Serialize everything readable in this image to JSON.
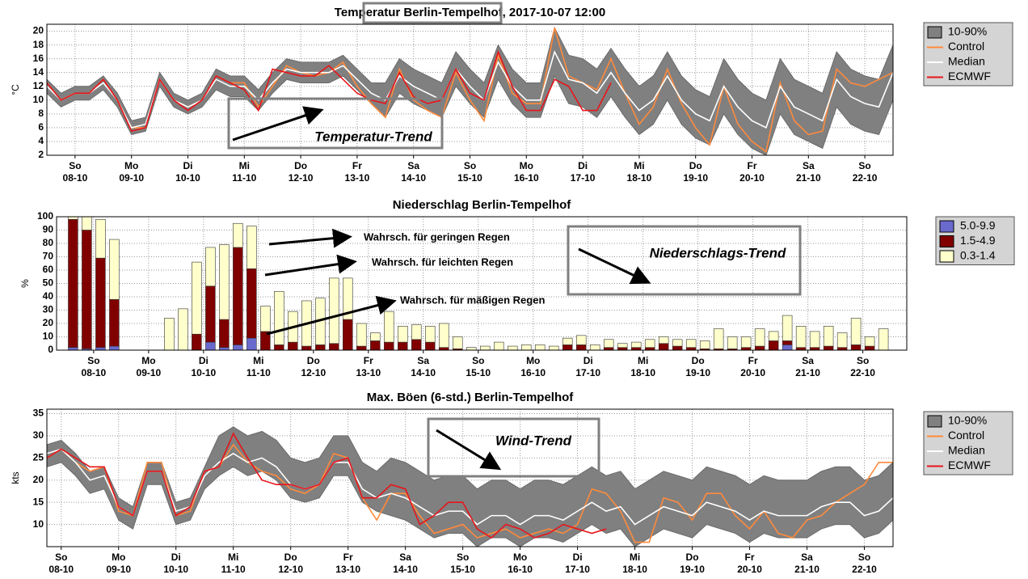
{
  "chart_data": [
    {
      "type": "line",
      "title": "Temperatur Berlin-Tempelhof, 2017-10-07 12:00",
      "ylabel": "°C",
      "ylim": [
        2,
        21
      ],
      "yticks": [
        2,
        4,
        6,
        8,
        10,
        12,
        14,
        16,
        18,
        20
      ],
      "xlim": [
        0,
        60
      ],
      "grid": true,
      "xticks": [
        {
          "value": 2,
          "day": "So",
          "date": "08-10"
        },
        {
          "value": 6,
          "day": "Mo",
          "date": "09-10"
        },
        {
          "value": 10,
          "day": "Di",
          "date": "10-10"
        },
        {
          "value": 14,
          "day": "Mi",
          "date": "11-10"
        },
        {
          "value": 18,
          "day": "Do",
          "date": "12-10"
        },
        {
          "value": 22,
          "day": "Fr",
          "date": "13-10"
        },
        {
          "value": 26,
          "day": "Sa",
          "date": "14-10"
        },
        {
          "value": 30,
          "day": "So",
          "date": "15-10"
        },
        {
          "value": 34,
          "day": "Mo",
          "date": "16-10"
        },
        {
          "value": 38,
          "day": "Di",
          "date": "17-10"
        },
        {
          "value": 42,
          "day": "Mi",
          "date": "18-10"
        },
        {
          "value": 46,
          "day": "Do",
          "date": "19-10"
        },
        {
          "value": 50,
          "day": "Fr",
          "date": "20-10"
        },
        {
          "value": 54,
          "day": "Sa",
          "date": "21-10"
        },
        {
          "value": 58,
          "day": "So",
          "date": "22-10"
        }
      ],
      "band": {
        "name": "10-90%",
        "color": "#808080",
        "low": [
          11,
          9,
          10,
          10,
          11.5,
          9,
          5,
          5.5,
          12,
          9,
          8,
          9,
          11.5,
          10.5,
          10.5,
          8.5,
          11,
          13,
          12.5,
          12.5,
          12.5,
          13.5,
          11.5,
          9.5,
          7.5,
          11,
          9.5,
          8.5,
          7.5,
          12,
          9.5,
          7.5,
          13,
          9.5,
          7.5,
          7.5,
          13.5,
          9.5,
          9,
          7.5,
          10.5,
          7.5,
          5,
          6.5,
          10,
          6.5,
          4.5,
          3.5,
          8,
          5,
          3,
          2,
          8,
          5,
          4,
          3,
          9,
          6.5,
          5.5,
          5,
          10
        ],
        "high": [
          13,
          11,
          12,
          12,
          13.5,
          11,
          7,
          7.5,
          14,
          11,
          10,
          11,
          14.5,
          13.5,
          13.5,
          11.5,
          14,
          16,
          15.5,
          15.5,
          15.5,
          16.5,
          14.5,
          12.5,
          12.5,
          16,
          14.5,
          13.5,
          12.5,
          17,
          14.5,
          12.5,
          18,
          14.5,
          12.5,
          12.5,
          20.5,
          16.5,
          16,
          14.5,
          17.5,
          14.5,
          12,
          13.5,
          17,
          13.5,
          11.5,
          10.5,
          16,
          13,
          11,
          10,
          16,
          13,
          12,
          11,
          17,
          14.5,
          13.5,
          13,
          18
        ]
      },
      "series": [
        {
          "name": "Control",
          "color": "#ff8a3c",
          "values": [
            12.5,
            10,
            11,
            11,
            13,
            10,
            6,
            6,
            13,
            10,
            9,
            10,
            13.5,
            12.5,
            12.5,
            9,
            12,
            15,
            14,
            13.5,
            14,
            15.5,
            12,
            9.5,
            7.5,
            14.5,
            10,
            8.5,
            7.5,
            14,
            10,
            7,
            16.5,
            11,
            9.5,
            9.5,
            20.5,
            13.5,
            12.5,
            11.5,
            16,
            11,
            6.5,
            9,
            14.5,
            9.5,
            6,
            3.5,
            12,
            6.5,
            4,
            2.5,
            12.5,
            7,
            5,
            5.5,
            14.5,
            12.5,
            12,
            13,
            14
          ]
        },
        {
          "name": "Median",
          "color": "#ffffff",
          "values": [
            12,
            10,
            11,
            11,
            12.5,
            10,
            6,
            6.5,
            13,
            10,
            9,
            10,
            13,
            12,
            12,
            10,
            12.5,
            14.5,
            14,
            14,
            14,
            15,
            13,
            11,
            10,
            13.5,
            12,
            11,
            10,
            14.5,
            12,
            10,
            15.5,
            12,
            10,
            10,
            17,
            13,
            12.5,
            11,
            14,
            11,
            8.5,
            10,
            13.5,
            10,
            8,
            7,
            12,
            9,
            7,
            6,
            12,
            9,
            8,
            7,
            13,
            10.5,
            9.5,
            9,
            14
          ]
        },
        {
          "name": "ECMWF",
          "color": "#e8141a",
          "values": [
            12.5,
            10,
            11,
            11,
            13,
            10,
            5.5,
            6,
            13,
            10,
            8.5,
            10,
            13.5,
            12.5,
            11.5,
            8.5,
            14.5,
            14,
            13.5,
            13.5,
            15,
            13,
            11,
            10,
            9.5,
            14,
            10.5,
            9.5,
            10,
            14.5,
            11,
            10,
            17,
            12,
            8.5,
            8.5,
            13,
            12,
            8.5,
            8.5,
            12.5,
            null,
            null,
            null,
            null,
            null,
            null,
            null,
            null,
            null,
            null,
            null,
            null,
            null,
            null,
            null,
            null,
            null,
            null,
            null,
            null
          ]
        }
      ],
      "annotations": [
        "Temperatur-Trend"
      ]
    },
    {
      "type": "bar",
      "title": "Niederschlag Berlin-Tempelhof",
      "ylabel": "%",
      "ylim": [
        0,
        100
      ],
      "yticks": [
        0,
        10,
        20,
        30,
        40,
        50,
        60,
        70,
        80,
        90,
        100
      ],
      "xlim": [
        -1.2,
        60.7
      ],
      "grid": true,
      "xticks": [
        {
          "value": 1.5,
          "day": "So",
          "date": "08-10"
        },
        {
          "value": 5.5,
          "day": "Mo",
          "date": "09-10"
        },
        {
          "value": 9.5,
          "day": "Di",
          "date": "10-10"
        },
        {
          "value": 13.5,
          "day": "Mi",
          "date": "11-10"
        },
        {
          "value": 17.5,
          "day": "Do",
          "date": "12-10"
        },
        {
          "value": 21.5,
          "day": "Fr",
          "date": "13-10"
        },
        {
          "value": 25.5,
          "day": "Sa",
          "date": "14-10"
        },
        {
          "value": 29.5,
          "day": "So",
          "date": "15-10"
        },
        {
          "value": 33.5,
          "day": "Mo",
          "date": "16-10"
        },
        {
          "value": 37.5,
          "day": "Di",
          "date": "17-10"
        },
        {
          "value": 41.5,
          "day": "Mi",
          "date": "18-10"
        },
        {
          "value": 45.5,
          "day": "Do",
          "date": "19-10"
        },
        {
          "value": 49.5,
          "day": "Fr",
          "date": "20-10"
        },
        {
          "value": 53.5,
          "day": "Sa",
          "date": "21-10"
        },
        {
          "value": 57.5,
          "day": "So",
          "date": "22-10"
        }
      ],
      "series": [
        {
          "name": "5.0-9.9",
          "color": "#6a6acd",
          "values": [
            2,
            1,
            2,
            3,
            0,
            0,
            0,
            0,
            0,
            0,
            6,
            2,
            4,
            9,
            0,
            0,
            0,
            0,
            0,
            0,
            0,
            0,
            0,
            0,
            0,
            0,
            0,
            0,
            0,
            0,
            0,
            0,
            0,
            0,
            0,
            0,
            0,
            0,
            0,
            0,
            0,
            0,
            0,
            0,
            0,
            0,
            0,
            0,
            0,
            0,
            0,
            0,
            4,
            0,
            0,
            0,
            0,
            0,
            0,
            0
          ]
        },
        {
          "name": "1.5-4.9",
          "color": "#800000",
          "values": [
            96,
            89,
            67,
            35,
            0,
            0,
            0,
            0,
            0,
            12,
            42,
            21,
            73,
            52,
            14,
            4,
            6,
            3,
            4,
            5,
            23,
            3,
            7,
            6,
            6,
            8,
            6,
            2,
            1,
            0,
            0,
            0,
            0,
            0,
            0,
            0,
            4,
            4,
            0,
            2,
            2,
            2,
            2,
            5,
            3,
            2,
            1,
            1,
            1,
            2,
            3,
            7,
            3,
            2,
            2,
            3,
            2,
            4,
            3,
            0
          ]
        },
        {
          "name": "0.3-1.4",
          "color": "#ffffcc",
          "values": [
            2,
            10,
            29,
            45,
            0,
            0,
            0,
            24,
            31,
            54,
            29,
            56,
            18,
            32,
            19,
            40,
            23,
            34,
            35,
            49,
            31,
            17,
            6,
            23,
            12,
            11,
            12,
            18,
            9,
            2,
            3,
            6,
            3,
            4,
            4,
            3,
            5,
            7,
            4,
            6,
            3,
            4,
            6,
            5,
            5,
            6,
            6,
            15,
            9,
            8,
            13,
            7,
            19,
            16,
            12,
            15,
            11,
            20,
            7,
            16
          ]
        }
      ],
      "annotations": [
        "Niederschlags-Trend",
        "Wahrsch. für geringen Regen",
        "Wahrsch. für leichten Regen",
        "Wahrsch. für mäßigen Regen"
      ]
    },
    {
      "type": "line",
      "title": "Max. Böen (6-std.) Berlin-Tempelhof",
      "ylabel": "kts",
      "ylim": [
        5,
        36
      ],
      "yticks": [
        10,
        15,
        20,
        25,
        30,
        35
      ],
      "xlim": [
        0,
        59
      ],
      "grid": true,
      "xticks": [
        {
          "value": 1,
          "day": "So",
          "date": "08-10"
        },
        {
          "value": 5,
          "day": "Mo",
          "date": "09-10"
        },
        {
          "value": 9,
          "day": "Di",
          "date": "10-10"
        },
        {
          "value": 13,
          "day": "Mi",
          "date": "11-10"
        },
        {
          "value": 17,
          "day": "Do",
          "date": "12-10"
        },
        {
          "value": 21,
          "day": "Fr",
          "date": "13-10"
        },
        {
          "value": 25,
          "day": "Sa",
          "date": "14-10"
        },
        {
          "value": 29,
          "day": "So",
          "date": "15-10"
        },
        {
          "value": 33,
          "day": "Mo",
          "date": "16-10"
        },
        {
          "value": 37,
          "day": "Di",
          "date": "17-10"
        },
        {
          "value": 41,
          "day": "Mi",
          "date": "18-10"
        },
        {
          "value": 45,
          "day": "Do",
          "date": "19-10"
        },
        {
          "value": 49,
          "day": "Fr",
          "date": "20-10"
        },
        {
          "value": 53,
          "day": "Sa",
          "date": "21-10"
        },
        {
          "value": 57,
          "day": "So",
          "date": "22-10"
        }
      ],
      "band": {
        "name": "10-90%",
        "color": "#808080",
        "low": [
          23,
          24,
          21,
          17,
          18,
          11,
          9,
          19,
          19,
          10,
          11,
          18,
          21,
          23,
          21,
          22,
          20,
          16,
          15,
          16,
          21,
          21,
          15,
          13,
          12,
          11,
          9,
          7,
          8,
          8,
          5,
          7,
          7,
          5,
          7,
          7,
          6,
          8,
          10,
          8,
          9,
          5,
          7,
          9,
          8,
          7,
          10,
          9,
          8,
          6,
          8,
          7,
          7,
          7,
          9,
          10,
          10,
          7,
          8,
          11
        ],
        "high": [
          28,
          29,
          26,
          22,
          23,
          16,
          14,
          24,
          24,
          15,
          16,
          23,
          30,
          32,
          30,
          31,
          29,
          25,
          24,
          25,
          30,
          30,
          24,
          22,
          25,
          24,
          22,
          20,
          21,
          21,
          18,
          20,
          20,
          18,
          20,
          20,
          19,
          21,
          23,
          21,
          22,
          18,
          20,
          22,
          21,
          20,
          23,
          22,
          21,
          19,
          21,
          20,
          20,
          20,
          22,
          23,
          23,
          20,
          21,
          24
        ]
      },
      "series": [
        {
          "name": "Control",
          "color": "#ff8a3c",
          "values": [
            25,
            27,
            24,
            22,
            23,
            13,
            12,
            24,
            24,
            12,
            13,
            22,
            23,
            28,
            24,
            22,
            21,
            18,
            17,
            19,
            26,
            25,
            16,
            11,
            17,
            17,
            12,
            8,
            9,
            10,
            7,
            8,
            9,
            7,
            8,
            9,
            8,
            10,
            18,
            17,
            13,
            6,
            6,
            16,
            15,
            11,
            17,
            17,
            12,
            9,
            13,
            8,
            7,
            11,
            12,
            15,
            17,
            19,
            24,
            24
          ]
        },
        {
          "name": "Median",
          "color": "#ffffff",
          "values": [
            26,
            27,
            24,
            20,
            21,
            14,
            12,
            22,
            22,
            13,
            14,
            21,
            24,
            26,
            24,
            25,
            23,
            19,
            18,
            19,
            24,
            24,
            18,
            16,
            17,
            16,
            14,
            12,
            13,
            13,
            10,
            12,
            12,
            10,
            12,
            12,
            11,
            13,
            15,
            13,
            14,
            10,
            12,
            14,
            13,
            12,
            15,
            14,
            13,
            11,
            13,
            12,
            12,
            12,
            14,
            15,
            15,
            12,
            13,
            16
          ]
        },
        {
          "name": "ECMWF",
          "color": "#e8141a",
          "values": [
            25,
            27,
            25,
            23,
            23,
            14,
            12,
            22,
            22,
            12,
            14,
            22,
            23,
            30.5,
            25,
            20,
            19,
            19,
            18,
            19,
            24,
            25,
            16,
            16,
            19,
            18,
            10,
            12,
            15,
            15,
            9,
            7,
            10,
            9,
            7,
            8,
            10,
            9,
            8,
            9,
            null,
            null,
            null,
            null,
            null,
            null,
            null,
            null,
            null,
            null,
            null,
            null,
            null,
            null,
            null,
            null,
            null,
            null,
            null,
            null
          ]
        }
      ],
      "annotations": [
        "Wind-Trend"
      ]
    }
  ]
}
